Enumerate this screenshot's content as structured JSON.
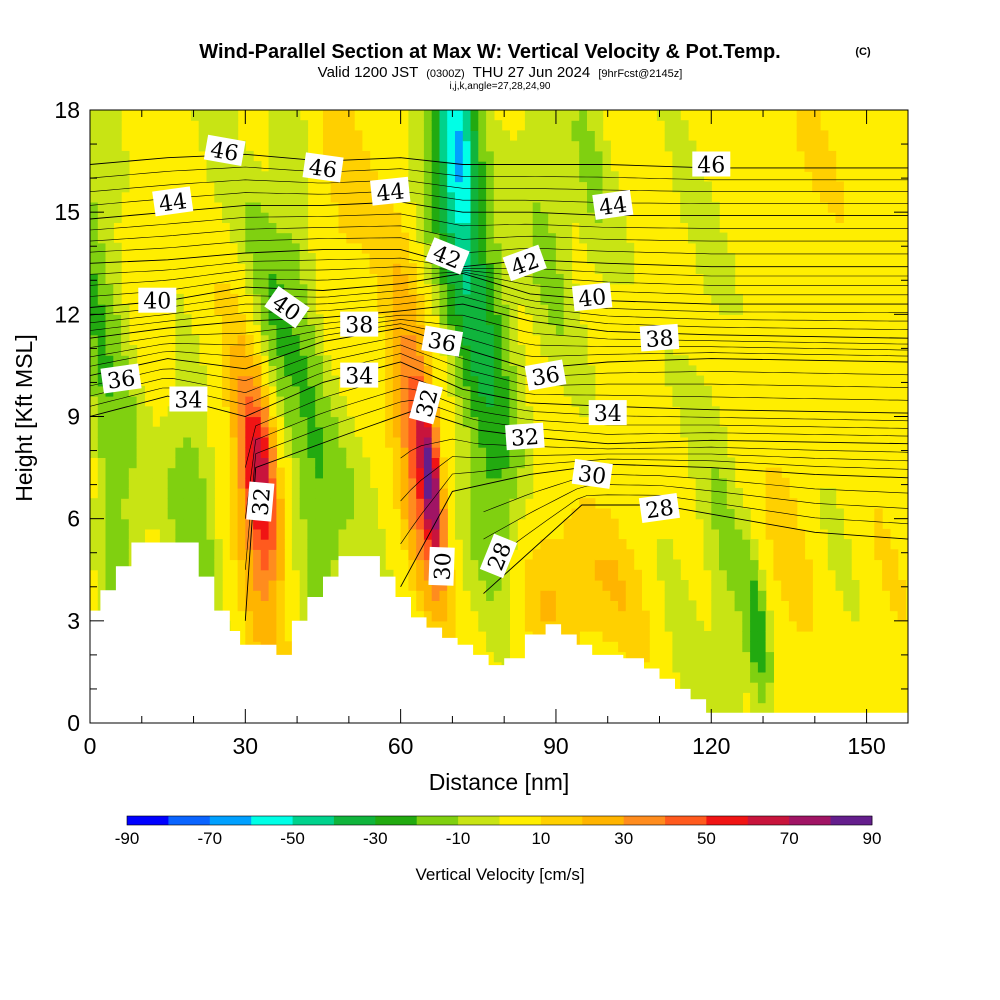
{
  "title": {
    "main": "Wind-Parallel Section at Max W: Vertical Velocity & Pot.Temp.",
    "copyright": "(C)",
    "valid_prefix": "Valid 1200 JST",
    "valid_utc": "(0300Z)",
    "valid_date": "THU 27 Jun 2024",
    "forecast": "[9hrFcst@2145z]",
    "indices": "i,j,k,angle=27,28,24,90"
  },
  "chart_data": {
    "type": "heatmap",
    "xlabel": "Distance [nm]",
    "ylabel": "Height [Kft MSL]",
    "xlim": [
      0,
      158
    ],
    "ylim": [
      0,
      18
    ],
    "x_ticks": [
      0,
      30,
      60,
      90,
      120,
      150
    ],
    "y_ticks": [
      0,
      3,
      6,
      9,
      12,
      15,
      18
    ],
    "colorbar": {
      "label": "Vertical Velocity [cm/s]",
      "levels": [
        -90,
        -80,
        -70,
        -60,
        -50,
        -40,
        -30,
        -20,
        -10,
        0,
        10,
        20,
        30,
        40,
        50,
        60,
        70,
        80,
        90
      ],
      "tick_labels": [
        -90,
        -70,
        -50,
        -30,
        -10,
        10,
        30,
        50,
        70,
        90
      ],
      "colors": [
        "#0000ff",
        "#0a64ff",
        "#00a0ff",
        "#00ffe6",
        "#00d28c",
        "#10b43c",
        "#22aa10",
        "#80d010",
        "#c8e414",
        "#ffee00",
        "#ffd000",
        "#ffb400",
        "#ff8c1e",
        "#ff5a1e",
        "#f01414",
        "#c8143c",
        "#a01464",
        "#641e8c"
      ]
    },
    "terrain_kft": [
      [
        0,
        3.3
      ],
      [
        2,
        3.9
      ],
      [
        5,
        4.6
      ],
      [
        8,
        5.3
      ],
      [
        13,
        5.3
      ],
      [
        17,
        5.3
      ],
      [
        21,
        4.3
      ],
      [
        24,
        3.3
      ],
      [
        27,
        2.7
      ],
      [
        29,
        2.3
      ],
      [
        33,
        2.3
      ],
      [
        36,
        2.0
      ],
      [
        39,
        3.0
      ],
      [
        42,
        3.7
      ],
      [
        45,
        4.3
      ],
      [
        48,
        4.9
      ],
      [
        53,
        4.9
      ],
      [
        56,
        4.3
      ],
      [
        59,
        3.7
      ],
      [
        62,
        3.1
      ],
      [
        65,
        2.8
      ],
      [
        68,
        2.5
      ],
      [
        71,
        2.3
      ],
      [
        74,
        2.0
      ],
      [
        77,
        1.7
      ],
      [
        80,
        1.9
      ],
      [
        84,
        2.6
      ],
      [
        88,
        2.9
      ],
      [
        91,
        2.6
      ],
      [
        94,
        2.3
      ],
      [
        97,
        2.0
      ],
      [
        103,
        1.9
      ],
      [
        107,
        1.6
      ],
      [
        110,
        1.3
      ],
      [
        113,
        1.0
      ],
      [
        116,
        0.7
      ],
      [
        119,
        0.3
      ],
      [
        158,
        0.3
      ]
    ],
    "theta_contours": [
      {
        "label": "28",
        "level": 28,
        "points": [
          [
            76,
            3.8
          ],
          [
            95,
            6.4
          ],
          [
            110,
            6.4
          ],
          [
            125,
            6.0
          ],
          [
            140,
            5.6
          ],
          [
            158,
            5.4
          ]
        ]
      },
      {
        "label": "30",
        "level": 30,
        "points": [
          [
            60,
            4.0
          ],
          [
            70,
            6.8
          ],
          [
            85,
            7.3
          ],
          [
            100,
            7.6
          ],
          [
            120,
            7.5
          ],
          [
            140,
            7.3
          ],
          [
            158,
            7.2
          ]
        ]
      },
      {
        "label": "32",
        "level": 32,
        "points": [
          [
            30,
            3.0
          ],
          [
            32,
            7.5
          ],
          [
            50,
            8.5
          ],
          [
            63,
            9.2
          ],
          [
            75,
            8.6
          ],
          [
            85,
            8.4
          ],
          [
            100,
            8.2
          ],
          [
            120,
            8.3
          ],
          [
            158,
            8.2
          ]
        ]
      },
      {
        "label": "34",
        "level": 34,
        "points": [
          [
            0,
            9.0
          ],
          [
            15,
            9.6
          ],
          [
            30,
            9.0
          ],
          [
            45,
            10.0
          ],
          [
            60,
            10.6
          ],
          [
            72,
            9.8
          ],
          [
            85,
            9.4
          ],
          [
            100,
            9.3
          ],
          [
            120,
            9.2
          ],
          [
            158,
            9.1
          ]
        ]
      },
      {
        "label": "36",
        "level": 36,
        "points": [
          [
            0,
            10.2
          ],
          [
            15,
            10.7
          ],
          [
            30,
            10.4
          ],
          [
            45,
            11.2
          ],
          [
            60,
            11.6
          ],
          [
            72,
            11.0
          ],
          [
            85,
            10.4
          ],
          [
            100,
            10.6
          ],
          [
            120,
            10.7
          ],
          [
            158,
            10.6
          ]
        ]
      },
      {
        "label": "38",
        "level": 38,
        "points": [
          [
            0,
            11.3
          ],
          [
            15,
            11.6
          ],
          [
            30,
            11.8
          ],
          [
            45,
            11.9
          ],
          [
            60,
            12.1
          ],
          [
            72,
            12.3
          ],
          [
            85,
            11.8
          ],
          [
            100,
            11.5
          ],
          [
            120,
            11.4
          ],
          [
            158,
            11.3
          ]
        ]
      },
      {
        "label": "40",
        "level": 40,
        "points": [
          [
            0,
            12.2
          ],
          [
            15,
            12.4
          ],
          [
            30,
            12.8
          ],
          [
            45,
            12.7
          ],
          [
            60,
            12.9
          ],
          [
            72,
            13.2
          ],
          [
            85,
            12.6
          ],
          [
            100,
            12.4
          ],
          [
            120,
            12.3
          ],
          [
            158,
            12.3
          ]
        ]
      },
      {
        "label": "42",
        "level": 42,
        "points": [
          [
            0,
            13.5
          ],
          [
            15,
            13.6
          ],
          [
            30,
            13.8
          ],
          [
            45,
            13.9
          ],
          [
            60,
            13.9
          ],
          [
            72,
            13.4
          ],
          [
            85,
            13.6
          ],
          [
            100,
            13.5
          ],
          [
            120,
            13.4
          ],
          [
            158,
            13.4
          ]
        ]
      },
      {
        "label": "44",
        "level": 44,
        "points": [
          [
            0,
            14.8
          ],
          [
            15,
            15.0
          ],
          [
            30,
            15.2
          ],
          [
            45,
            15.2
          ],
          [
            60,
            15.3
          ],
          [
            72,
            15.0
          ],
          [
            85,
            15.0
          ],
          [
            100,
            14.9
          ],
          [
            120,
            14.9
          ],
          [
            158,
            14.9
          ]
        ]
      },
      {
        "label": "46",
        "level": 46,
        "points": [
          [
            0,
            16.4
          ],
          [
            15,
            16.6
          ],
          [
            30,
            16.7
          ],
          [
            45,
            16.5
          ],
          [
            60,
            16.6
          ],
          [
            72,
            16.4
          ],
          [
            85,
            16.4
          ],
          [
            100,
            16.4
          ],
          [
            120,
            16.3
          ],
          [
            158,
            16.3
          ]
        ]
      }
    ],
    "contour_labels": [
      {
        "text": "46",
        "x": 26,
        "y": 16.8,
        "angle": 10
      },
      {
        "text": "46",
        "x": 45,
        "y": 16.3,
        "angle": 8
      },
      {
        "text": "46",
        "x": 120,
        "y": 16.4,
        "angle": 0
      },
      {
        "text": "44",
        "x": 16,
        "y": 15.3,
        "angle": -8
      },
      {
        "text": "44",
        "x": 58,
        "y": 15.6,
        "angle": -6
      },
      {
        "text": "44",
        "x": 101,
        "y": 15.2,
        "angle": -8
      },
      {
        "text": "42",
        "x": 69,
        "y": 13.7,
        "angle": 22
      },
      {
        "text": "42",
        "x": 84,
        "y": 13.5,
        "angle": -20
      },
      {
        "text": "40",
        "x": 13,
        "y": 12.4,
        "angle": 0
      },
      {
        "text": "40",
        "x": 38,
        "y": 12.2,
        "angle": 35
      },
      {
        "text": "40",
        "x": 97,
        "y": 12.5,
        "angle": -6
      },
      {
        "text": "38",
        "x": 52,
        "y": 11.7,
        "angle": 0
      },
      {
        "text": "38",
        "x": 110,
        "y": 11.3,
        "angle": -4
      },
      {
        "text": "36",
        "x": 6,
        "y": 10.1,
        "angle": -8
      },
      {
        "text": "36",
        "x": 68,
        "y": 11.2,
        "angle": 10
      },
      {
        "text": "36",
        "x": 88,
        "y": 10.2,
        "angle": -10
      },
      {
        "text": "34",
        "x": 19,
        "y": 9.5,
        "angle": 0
      },
      {
        "text": "34",
        "x": 52,
        "y": 10.2,
        "angle": 0
      },
      {
        "text": "34",
        "x": 100,
        "y": 9.1,
        "angle": 0
      },
      {
        "text": "32",
        "x": 33,
        "y": 6.5,
        "angle": -85
      },
      {
        "text": "32",
        "x": 65,
        "y": 9.4,
        "angle": -75
      },
      {
        "text": "32",
        "x": 84,
        "y": 8.4,
        "angle": -4
      },
      {
        "text": "30",
        "x": 68,
        "y": 4.6,
        "angle": -88
      },
      {
        "text": "30",
        "x": 97,
        "y": 7.3,
        "angle": 8
      },
      {
        "text": "28",
        "x": 79,
        "y": 4.9,
        "angle": -68
      },
      {
        "text": "28",
        "x": 110,
        "y": 6.3,
        "angle": -8
      }
    ]
  }
}
